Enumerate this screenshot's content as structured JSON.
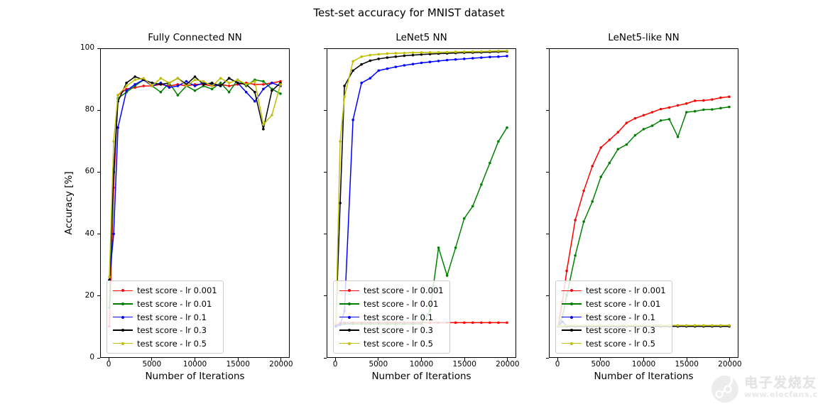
{
  "figure": {
    "suptitle": "Test-set accuracy for MNIST dataset",
    "ylabel": "Accuracy [%]"
  },
  "watermark": {
    "brand": "电子发烧友",
    "url": "www.elecfans.com"
  },
  "colors": {
    "red": "#ff0000",
    "green": "#008000",
    "blue": "#0000ff",
    "black": "#000000",
    "yellow": "#bfbf00"
  },
  "chart_data": [
    {
      "type": "line",
      "title": "Fully Connected NN",
      "xlabel": "Number of Iterations",
      "xticks": [
        0,
        5000,
        10000,
        15000,
        20000
      ],
      "yticks": [
        0,
        20,
        40,
        60,
        80,
        100
      ],
      "xlim": [
        -1000,
        21000
      ],
      "ylim": [
        0,
        100
      ],
      "grid": false,
      "legend_position": "lower left",
      "marker": "dot",
      "x": [
        0,
        500,
        1000,
        2000,
        3000,
        4000,
        5000,
        6000,
        7000,
        8000,
        9000,
        10000,
        11000,
        12000,
        13000,
        14000,
        15000,
        16000,
        17000,
        18000,
        19000,
        20000
      ],
      "series": [
        {
          "name": "test score - lr 0.001",
          "color": "#ff0000",
          "values": [
            10,
            55,
            85,
            87,
            87.5,
            88,
            88,
            88.5,
            88,
            88.5,
            88,
            88.5,
            88.5,
            88,
            88.5,
            88,
            88.5,
            89,
            88.5,
            88.5,
            89,
            89.5
          ]
        },
        {
          "name": "test score - lr 0.01",
          "color": "#008000",
          "values": [
            16,
            60,
            84,
            86,
            88,
            90,
            88,
            86,
            89,
            85,
            88,
            86.5,
            88,
            87,
            89,
            86,
            90,
            88,
            90,
            89.5,
            87,
            85.5
          ]
        },
        {
          "name": "test score - lr 0.1",
          "color": "#0000ff",
          "values": [
            25,
            40,
            74.5,
            86.5,
            88.5,
            90,
            88,
            89,
            87.5,
            88,
            89.5,
            88,
            89,
            88.5,
            88,
            90.5,
            89,
            86,
            83,
            87,
            89,
            88
          ]
        },
        {
          "name": "test score - lr 0.3",
          "color": "#000000",
          "values": [
            25,
            60,
            83,
            89,
            91,
            90,
            89,
            88.5,
            89,
            90.5,
            88.5,
            91,
            88.5,
            89,
            88,
            90.5,
            89,
            88.5,
            86,
            74,
            86.5,
            89
          ]
        },
        {
          "name": "test score - lr 0.5",
          "color": "#bfbf00",
          "values": [
            26,
            70,
            85,
            88,
            90,
            90.5,
            88,
            90.5,
            89,
            90.5,
            88,
            90,
            89.5,
            88,
            90.5,
            89,
            90,
            88.5,
            89.5,
            75.5,
            78.5,
            88.5
          ]
        }
      ]
    },
    {
      "type": "line",
      "title": "LeNet5 NN",
      "xlabel": "Number of Iterations",
      "xticks": [
        0,
        5000,
        10000,
        15000,
        20000
      ],
      "yticks": [
        0,
        20,
        40,
        60,
        80,
        100
      ],
      "xlim": [
        -1000,
        21000
      ],
      "ylim": [
        0,
        100
      ],
      "grid": false,
      "legend_position": "lower left",
      "marker": "dot",
      "x": [
        0,
        500,
        1000,
        2000,
        3000,
        4000,
        5000,
        6000,
        7000,
        8000,
        9000,
        10000,
        11000,
        12000,
        13000,
        14000,
        15000,
        16000,
        17000,
        18000,
        19000,
        20000
      ],
      "series": [
        {
          "name": "test score - lr 0.001",
          "color": "#ff0000",
          "values": [
            10.3,
            11,
            11.2,
            11.2,
            11.2,
            11.2,
            11.2,
            11.2,
            11.2,
            11.2,
            11.2,
            11.2,
            11.2,
            11.2,
            11.2,
            11.2,
            11.2,
            11.2,
            11.2,
            11.2,
            11.2,
            11.2
          ]
        },
        {
          "name": "test score - lr 0.01",
          "color": "#008000",
          "values": [
            10,
            10.5,
            10.8,
            10.8,
            10.8,
            10.8,
            10.8,
            10.8,
            10.8,
            10.8,
            10.8,
            10.8,
            15,
            35.5,
            26.5,
            35.5,
            45,
            49,
            56,
            63,
            70,
            74.5
          ]
        },
        {
          "name": "test score - lr 0.1",
          "color": "#0000ff",
          "values": [
            10,
            10.5,
            15,
            77,
            89,
            90.5,
            93,
            93.6,
            94.2,
            94.7,
            95.1,
            95.5,
            95.8,
            96.1,
            96.4,
            96.6,
            96.8,
            97,
            97.2,
            97.4,
            97.5,
            97.7
          ]
        },
        {
          "name": "test score - lr 0.3",
          "color": "#000000",
          "values": [
            11,
            50,
            88,
            93,
            95,
            96.2,
            96.8,
            97.2,
            97.5,
            97.8,
            98,
            98.2,
            98.35,
            98.5,
            98.6,
            98.7,
            98.8,
            98.85,
            98.9,
            99,
            99.1,
            99.2
          ]
        },
        {
          "name": "test score - lr 0.5",
          "color": "#bfbf00",
          "values": [
            11,
            70,
            84.5,
            96,
            97.5,
            98,
            98.3,
            98.5,
            98.6,
            98.7,
            98.8,
            98.85,
            98.9,
            98.95,
            99,
            99.05,
            99.1,
            99.15,
            99.2,
            99.3,
            99.35,
            99.4
          ]
        }
      ]
    },
    {
      "type": "line",
      "title": "LeNet5-like NN",
      "xlabel": "Number of Iterations",
      "xticks": [
        0,
        5000,
        10000,
        15000,
        20000
      ],
      "yticks": [
        0,
        20,
        40,
        60,
        80,
        100
      ],
      "xlim": [
        -1000,
        21000
      ],
      "ylim": [
        0,
        100
      ],
      "grid": false,
      "legend_position": "lower left",
      "marker": "dot",
      "x": [
        0,
        500,
        1000,
        2000,
        3000,
        4000,
        5000,
        6000,
        7000,
        8000,
        9000,
        10000,
        11000,
        12000,
        13000,
        14000,
        15000,
        16000,
        17000,
        18000,
        19000,
        20000
      ],
      "series": [
        {
          "name": "test score - lr 0.001",
          "color": "#ff0000",
          "values": [
            10,
            18,
            28,
            44.5,
            54,
            62,
            68,
            70.5,
            73,
            76,
            77.5,
            78.5,
            79.5,
            80.5,
            81,
            81.7,
            82.3,
            83.2,
            83.3,
            83.6,
            84.2,
            84.5
          ]
        },
        {
          "name": "test score - lr 0.01",
          "color": "#008000",
          "values": [
            10,
            13,
            20,
            33,
            44,
            50.5,
            58.5,
            63,
            67.5,
            69,
            72,
            74,
            75.1,
            76.8,
            77.2,
            71.5,
            79.5,
            79.8,
            80.3,
            80.4,
            80.8,
            81.2
          ]
        },
        {
          "name": "test score - lr 0.1",
          "color": "#0000ff",
          "values": [
            10,
            11.5,
            10.2,
            10.2,
            10.2,
            10.2,
            10.2,
            10.2,
            10.2,
            10.2,
            10.2,
            10.2,
            10.2,
            10.2,
            10.2,
            10.2,
            10.2,
            10.2,
            10.2,
            10.2,
            10.2,
            10.2
          ]
        },
        {
          "name": "test score - lr 0.3",
          "color": "#000000",
          "values": [
            10,
            10,
            10,
            10,
            10,
            10,
            10,
            10,
            10,
            10,
            10,
            10,
            10,
            10,
            10,
            10,
            10,
            10,
            10,
            10,
            10,
            10
          ]
        },
        {
          "name": "test score - lr 0.5",
          "color": "#bfbf00",
          "values": [
            10.1,
            10.2,
            10.3,
            10.3,
            10.3,
            10.3,
            10.3,
            10.3,
            10.3,
            10.3,
            10.3,
            10.3,
            10.3,
            10.3,
            10.3,
            10.3,
            10.3,
            10.3,
            10.3,
            10.3,
            10.3,
            10.3
          ]
        }
      ]
    }
  ]
}
